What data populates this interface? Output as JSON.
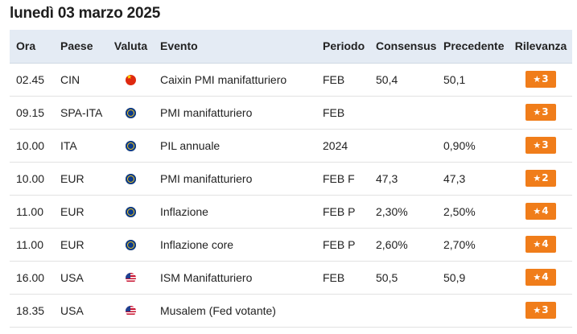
{
  "title": "lunedì 03 marzo 2025",
  "columns": {
    "ora": "Ora",
    "paese": "Paese",
    "valuta": "Valuta",
    "evento": "Evento",
    "periodo": "Periodo",
    "consensus": "Consensus",
    "precedente": "Precedente",
    "rilevanza": "Rilevanza"
  },
  "accent_color": "#f07d1a",
  "rows": [
    {
      "ora": "02.45",
      "paese": "CIN",
      "flag": "china-flag-icon",
      "evento": "Caixin PMI manifatturiero",
      "periodo": "FEB",
      "consensus": "50,4",
      "precedente": "50,1",
      "rilevanza": "3"
    },
    {
      "ora": "09.15",
      "paese": "SPA-ITA",
      "flag": "eu-flag-icon",
      "evento": "PMI manifatturiero",
      "periodo": "FEB",
      "consensus": "",
      "precedente": "",
      "rilevanza": "3"
    },
    {
      "ora": "10.00",
      "paese": "ITA",
      "flag": "eu-flag-icon",
      "evento": "PIL annuale",
      "periodo": "2024",
      "consensus": "",
      "precedente": "0,90%",
      "rilevanza": "3"
    },
    {
      "ora": "10.00",
      "paese": "EUR",
      "flag": "eu-flag-icon",
      "evento": "PMI manifatturiero",
      "periodo": "FEB F",
      "consensus": "47,3",
      "precedente": "47,3",
      "rilevanza": "2"
    },
    {
      "ora": "11.00",
      "paese": "EUR",
      "flag": "eu-flag-icon",
      "evento": "Inflazione",
      "periodo": "FEB P",
      "consensus": "2,30%",
      "precedente": "2,50%",
      "rilevanza": "4"
    },
    {
      "ora": "11.00",
      "paese": "EUR",
      "flag": "eu-flag-icon",
      "evento": "Inflazione core",
      "periodo": "FEB P",
      "consensus": "2,60%",
      "precedente": "2,70%",
      "rilevanza": "4"
    },
    {
      "ora": "16.00",
      "paese": "USA",
      "flag": "us-flag-icon",
      "evento": "ISM Manifatturiero",
      "periodo": "FEB",
      "consensus": "50,5",
      "precedente": "50,9",
      "rilevanza": "4"
    },
    {
      "ora": "18.35",
      "paese": "USA",
      "flag": "us-flag-icon",
      "evento": "Musalem (Fed votante)",
      "periodo": "",
      "consensus": "",
      "precedente": "",
      "rilevanza": "3"
    }
  ]
}
